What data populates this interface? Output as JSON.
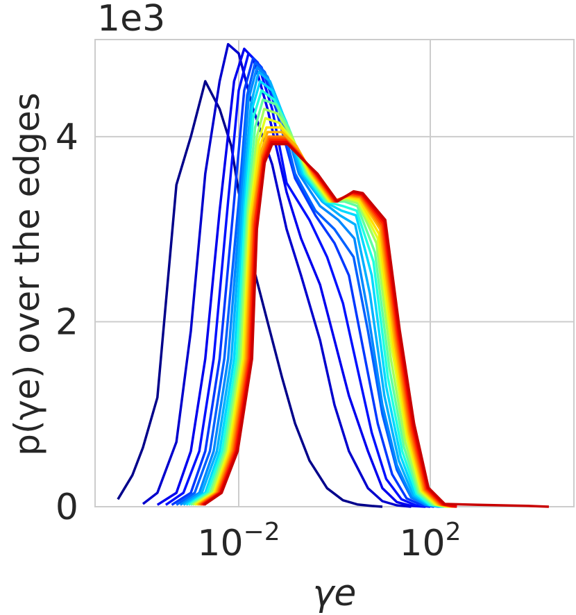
{
  "chart_data": {
    "type": "line",
    "title": "",
    "xlabel": "γe",
    "ylabel": "p(γe) over the edges",
    "x_scale": "log",
    "xlim": [
      1e-05,
      100000
    ],
    "ylim": [
      0,
      5050
    ],
    "y_offset_label": "1e3",
    "x_ticks": [
      {
        "value": 0.01,
        "base": "10",
        "exp": "−2"
      },
      {
        "value": 100,
        "base": "10",
        "exp": "2"
      }
    ],
    "y_ticks": [
      {
        "value": 0,
        "label": "0"
      },
      {
        "value": 2000,
        "label": "2"
      },
      {
        "value": 4000,
        "label": "4"
      }
    ],
    "grid": true,
    "legend": "none",
    "series_colors": [
      "#00008b",
      "#0000cd",
      "#0000ee",
      "#0010ff",
      "#0038ff",
      "#0060ff",
      "#0088ff",
      "#00b0ff",
      "#00d8ff",
      "#20ffe0",
      "#60ffa0",
      "#a0ff60",
      "#e0ff20",
      "#ffe000",
      "#ffb000",
      "#ff8000",
      "#ff5000",
      "#ff2000",
      "#e80000",
      "#c80000"
    ],
    "series": [
      {
        "x": [
          3e-05,
          6e-05,
          0.0001,
          0.0002,
          0.0005,
          0.001,
          0.002,
          0.004,
          0.007,
          0.01,
          0.015,
          0.02,
          0.04,
          0.08,
          0.15,
          0.3,
          0.7,
          1.5,
          3,
          6,
          10
        ],
        "y": [
          80,
          340,
          640,
          1180,
          3480,
          4000,
          4600,
          4300,
          3900,
          3400,
          3000,
          2600,
          2000,
          1400,
          900,
          500,
          200,
          70,
          25,
          8,
          0
        ]
      },
      {
        "x": [
          0.0001,
          0.0002,
          0.0005,
          0.001,
          0.002,
          0.004,
          0.006,
          0.01,
          0.02,
          0.05,
          0.1,
          0.2,
          0.5,
          1,
          2,
          5,
          10,
          20,
          40
        ],
        "y": [
          30,
          150,
          700,
          1900,
          3600,
          4600,
          5000,
          4900,
          4300,
          3700,
          3000,
          2500,
          1800,
          1100,
          600,
          200,
          60,
          15,
          0
        ]
      },
      {
        "x": [
          0.0002,
          0.0005,
          0.001,
          0.002,
          0.004,
          0.008,
          0.013,
          0.02,
          0.04,
          0.1,
          0.2,
          0.5,
          1,
          2,
          5,
          10,
          20,
          40,
          80
        ],
        "y": [
          20,
          150,
          600,
          1600,
          3200,
          4600,
          4950,
          4850,
          4300,
          3400,
          2900,
          2400,
          1800,
          1200,
          600,
          200,
          50,
          10,
          0
        ]
      },
      {
        "x": [
          0.0003,
          0.0007,
          0.0015,
          0.003,
          0.006,
          0.01,
          0.016,
          0.025,
          0.05,
          0.1,
          0.3,
          0.7,
          1.5,
          3,
          6,
          12,
          25,
          50,
          100
        ],
        "y": [
          20,
          150,
          600,
          1600,
          3300,
          4500,
          4900,
          4800,
          4300,
          3500,
          3100,
          2700,
          2200,
          1500,
          800,
          300,
          80,
          15,
          0
        ]
      },
      {
        "x": [
          0.0004,
          0.001,
          0.002,
          0.004,
          0.008,
          0.013,
          0.02,
          0.03,
          0.06,
          0.15,
          0.4,
          1,
          2,
          4,
          8,
          16,
          32,
          64,
          120
        ],
        "y": [
          20,
          150,
          600,
          1600,
          3300,
          4500,
          4850,
          4750,
          4300,
          3550,
          3150,
          2850,
          2500,
          1700,
          900,
          350,
          90,
          20,
          0
        ]
      },
      {
        "x": [
          0.0005,
          0.0012,
          0.0025,
          0.005,
          0.01,
          0.015,
          0.022,
          0.035,
          0.07,
          0.15,
          0.4,
          1,
          2.5,
          5,
          10,
          20,
          40,
          80,
          150
        ],
        "y": [
          20,
          150,
          600,
          1600,
          3300,
          4450,
          4800,
          4700,
          4300,
          3600,
          3200,
          3000,
          2700,
          1900,
          1000,
          400,
          100,
          20,
          0
        ]
      },
      {
        "x": [
          0.0006,
          0.0015,
          0.003,
          0.006,
          0.011,
          0.016,
          0.024,
          0.04,
          0.08,
          0.18,
          0.5,
          1.2,
          2.6,
          5,
          10,
          20,
          40,
          80,
          160
        ],
        "y": [
          20,
          150,
          600,
          1600,
          3300,
          4400,
          4750,
          4650,
          4250,
          3600,
          3250,
          3100,
          2900,
          2100,
          1100,
          450,
          110,
          20,
          0
        ]
      },
      {
        "x": [
          0.0007,
          0.0017,
          0.0035,
          0.007,
          0.012,
          0.018,
          0.026,
          0.045,
          0.09,
          0.2,
          0.55,
          1.3,
          2.7,
          5.5,
          11,
          22,
          44,
          90,
          170
        ],
        "y": [
          20,
          150,
          600,
          1600,
          3300,
          4350,
          4700,
          4600,
          4200,
          3600,
          3300,
          3150,
          3050,
          2300,
          1200,
          500,
          120,
          20,
          0
        ]
      },
      {
        "x": [
          0.0008,
          0.002,
          0.004,
          0.008,
          0.013,
          0.019,
          0.028,
          0.05,
          0.1,
          0.22,
          0.6,
          1.4,
          2.8,
          6,
          12,
          24,
          48,
          95,
          180
        ],
        "y": [
          20,
          150,
          600,
          1600,
          3250,
          4300,
          4600,
          4500,
          4150,
          3600,
          3300,
          3200,
          3150,
          2500,
          1300,
          550,
          130,
          20,
          0
        ]
      },
      {
        "x": [
          0.0009,
          0.0022,
          0.0045,
          0.009,
          0.014,
          0.02,
          0.03,
          0.055,
          0.11,
          0.24,
          0.65,
          1.5,
          2.9,
          6.5,
          13,
          26,
          52,
          100,
          190
        ],
        "y": [
          20,
          150,
          600,
          1600,
          3250,
          4200,
          4500,
          4400,
          4100,
          3600,
          3300,
          3250,
          3200,
          2650,
          1400,
          600,
          140,
          20,
          0
        ]
      },
      {
        "x": [
          0.001,
          0.0025,
          0.005,
          0.01,
          0.015,
          0.022,
          0.032,
          0.06,
          0.12,
          0.26,
          0.7,
          1.6,
          3,
          7,
          14,
          28,
          56,
          110,
          200
        ],
        "y": [
          20,
          150,
          600,
          1600,
          3200,
          4100,
          4400,
          4350,
          4050,
          3600,
          3300,
          3300,
          3250,
          2750,
          1500,
          650,
          150,
          25,
          0
        ]
      },
      {
        "x": [
          0.0011,
          0.0027,
          0.0055,
          0.011,
          0.016,
          0.024,
          0.034,
          0.065,
          0.13,
          0.28,
          0.75,
          1.7,
          3.1,
          7.5,
          15,
          30,
          60,
          120,
          220
        ],
        "y": [
          20,
          150,
          600,
          1600,
          3200,
          4000,
          4300,
          4250,
          4000,
          3600,
          3300,
          3320,
          3280,
          2850,
          1600,
          700,
          160,
          25,
          0
        ]
      },
      {
        "x": [
          0.0012,
          0.003,
          0.006,
          0.012,
          0.017,
          0.026,
          0.036,
          0.07,
          0.14,
          0.3,
          0.8,
          1.8,
          3.2,
          8,
          16,
          32,
          64,
          130,
          240
        ],
        "y": [
          20,
          150,
          600,
          1600,
          3150,
          3950,
          4200,
          4150,
          3950,
          3600,
          3300,
          3340,
          3300,
          2900,
          1700,
          750,
          170,
          25,
          0
        ]
      },
      {
        "x": [
          0.0013,
          0.0032,
          0.0065,
          0.013,
          0.018,
          0.028,
          0.038,
          0.075,
          0.15,
          0.32,
          0.85,
          1.9,
          3.3,
          8.5,
          17,
          34,
          68,
          140,
          260
        ],
        "y": [
          20,
          150,
          600,
          1600,
          3150,
          3900,
          4100,
          4100,
          3900,
          3600,
          3300,
          3350,
          3320,
          2950,
          1750,
          780,
          175,
          25,
          0
        ]
      },
      {
        "x": [
          0.0014,
          0.0034,
          0.007,
          0.014,
          0.019,
          0.03,
          0.04,
          0.08,
          0.16,
          0.34,
          0.9,
          2,
          3.4,
          9,
          18,
          36,
          72,
          150,
          280
        ],
        "y": [
          20,
          150,
          600,
          1600,
          3100,
          3850,
          4050,
          4050,
          3900,
          3600,
          3300,
          3360,
          3340,
          3000,
          1800,
          800,
          180,
          25,
          0
        ]
      },
      {
        "x": [
          0.0015,
          0.0036,
          0.0075,
          0.015,
          0.02,
          0.031,
          0.042,
          0.085,
          0.17,
          0.36,
          0.95,
          2.1,
          3.5,
          9.5,
          19,
          38,
          76,
          160,
          300
        ],
        "y": [
          20,
          150,
          600,
          1600,
          3100,
          3800,
          4000,
          4000,
          3850,
          3600,
          3300,
          3370,
          3350,
          3020,
          1830,
          820,
          185,
          25,
          0
        ]
      },
      {
        "x": [
          0.0016,
          0.0038,
          0.008,
          0.016,
          0.021,
          0.032,
          0.044,
          0.09,
          0.18,
          0.38,
          1,
          2.2,
          3.6,
          10,
          20,
          40,
          80,
          170,
          320
        ],
        "y": [
          20,
          150,
          600,
          1600,
          3050,
          3780,
          3980,
          3980,
          3820,
          3600,
          3300,
          3380,
          3360,
          3040,
          1850,
          840,
          190,
          25,
          0
        ]
      },
      {
        "x": [
          0.0017,
          0.004,
          0.0085,
          0.017,
          0.022,
          0.033,
          0.046,
          0.095,
          0.19,
          0.4,
          1.05,
          2.3,
          3.7,
          10.5,
          21,
          42,
          84,
          180,
          340
        ],
        "y": [
          20,
          150,
          600,
          1600,
          3050,
          3760,
          3960,
          3960,
          3800,
          3600,
          3300,
          3390,
          3370,
          3060,
          1870,
          860,
          195,
          25,
          0
        ]
      },
      {
        "x": [
          0.0018,
          0.0042,
          0.009,
          0.018,
          0.023,
          0.034,
          0.048,
          0.1,
          0.2,
          0.42,
          1.1,
          2.4,
          3.8,
          11,
          22,
          44,
          88,
          190,
          360
        ],
        "y": [
          20,
          150,
          600,
          1600,
          3000,
          3740,
          3940,
          3940,
          3780,
          3600,
          3300,
          3400,
          3380,
          3080,
          1890,
          880,
          200,
          25,
          0
        ]
      },
      {
        "x": [
          0.0019,
          0.0044,
          0.0095,
          0.019,
          0.024,
          0.035,
          0.05,
          0.105,
          0.21,
          0.44,
          1.15,
          2.5,
          3.9,
          11.5,
          23,
          46,
          92,
          200,
          1000,
          10000,
          30000
        ],
        "y": [
          20,
          150,
          600,
          1600,
          3000,
          3720,
          3920,
          3920,
          3760,
          3600,
          3300,
          3410,
          3390,
          3100,
          1910,
          900,
          205,
          30,
          20,
          10,
          0
        ]
      }
    ]
  }
}
